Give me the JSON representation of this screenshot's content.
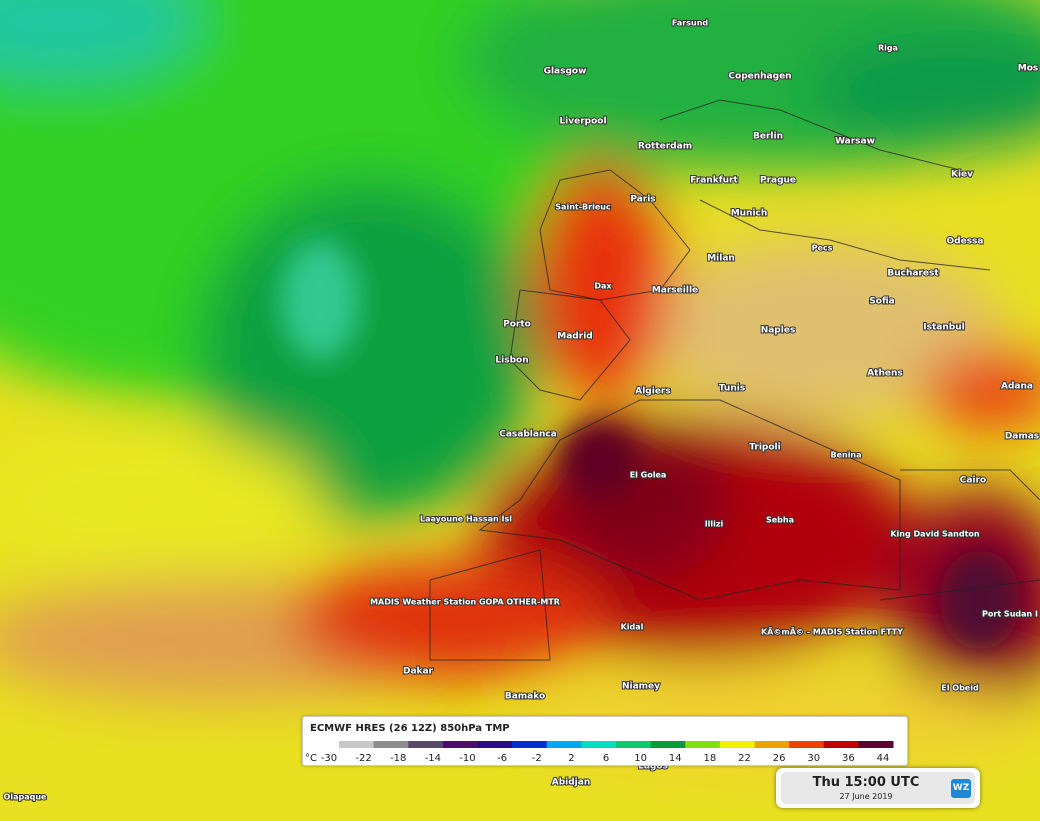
{
  "map": {
    "cities": [
      "Farsund",
      "Riga",
      "Glasgow",
      "Copenhagen",
      "Mos",
      "Liverpool",
      "Rotterdam",
      "Berlin",
      "Warsaw",
      "Kiev",
      "Frankfurt",
      "Prague",
      "Paris",
      "Saint-Brieuc",
      "Munich",
      "Odessa",
      "Pecs",
      "Milan",
      "Bucharest",
      "Dax",
      "Marseille",
      "Sofia",
      "Porto",
      "Madrid",
      "Naples",
      "Istanbul",
      "Lisbon",
      "Athens",
      "Adana",
      "Algiers",
      "Tunis",
      "Casablanca",
      "Tripoli",
      "Damas",
      "Benina",
      "El Golea",
      "Cairo",
      "Laayoune Hassan Isl",
      "Illizi",
      "Sebha",
      "King David Sandton",
      "MADIS Weather Station GOPA OTHER-MTR",
      "Kidal",
      "KÃ©mÃ© - MADIS Station FTTY",
      "Port Sudan I",
      "Dakar",
      "El Obeid",
      "Niamey",
      "Bamako",
      "Garoua Airport",
      "Lagos",
      "Abidjan",
      "Olapaque"
    ]
  },
  "legend": {
    "title": "ECMWF HRES (26 12Z) 850hPa TMP",
    "unit": "°C",
    "labels": [
      -30,
      -22,
      -18,
      -14,
      -10,
      -6,
      -2,
      2,
      6,
      10,
      14,
      18,
      22,
      26,
      30,
      36,
      44
    ],
    "colors": [
      "#c8c8c8",
      "#8c8c8c",
      "#5a4a6a",
      "#4b0f6b",
      "#2a0a8a",
      "#0030d0",
      "#00a8f0",
      "#00e0c0",
      "#10c870",
      "#0a9a3a",
      "#80e010",
      "#f0f000",
      "#f0a000",
      "#f04000",
      "#c00000",
      "#600030"
    ]
  },
  "time": {
    "label": "Thu 15:00 UTC",
    "date": "27 June 2019",
    "logo": "WZ"
  }
}
